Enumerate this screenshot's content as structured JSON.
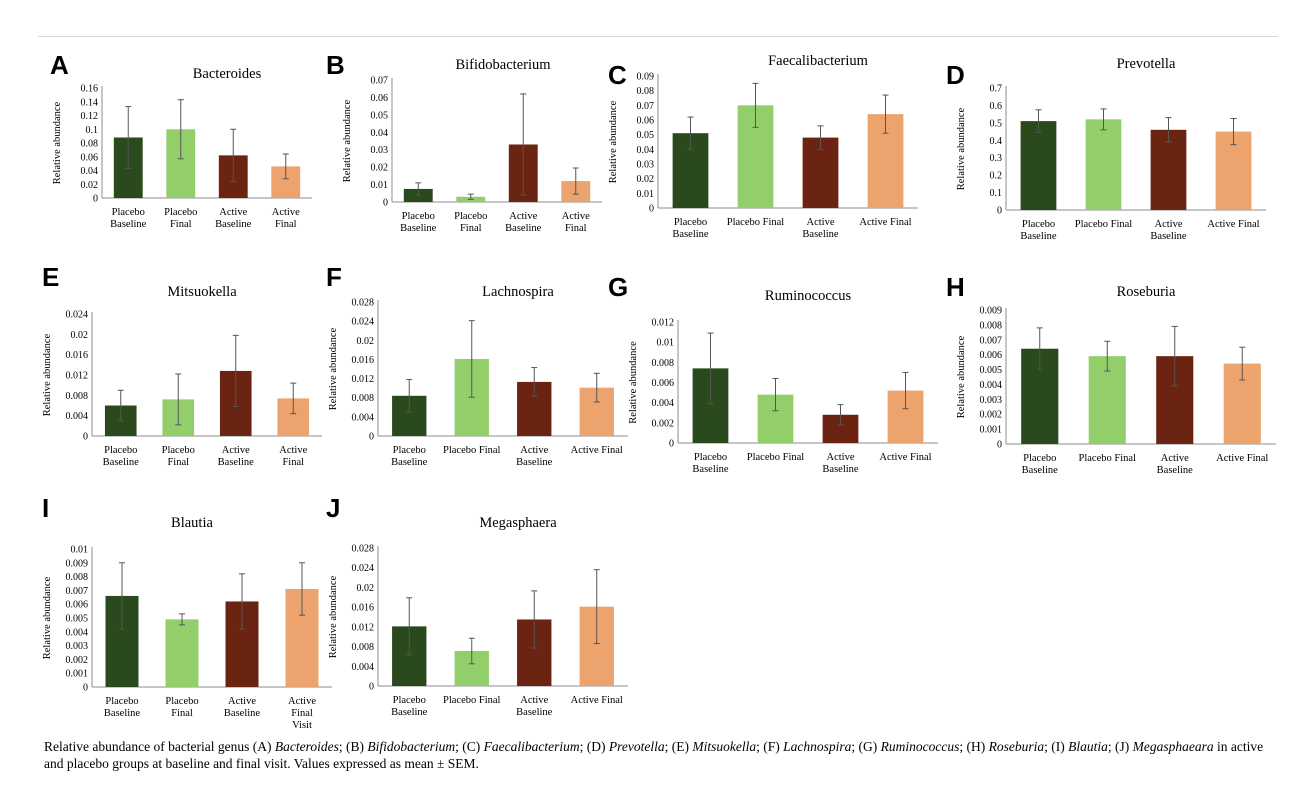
{
  "ylabel": "Relative abundance",
  "colors": {
    "placebo_baseline": "#2a4a1e",
    "placebo_final": "#92cf6b",
    "active_baseline": "#6b2412",
    "active_final": "#eda36d",
    "axis": "#8c8c8c",
    "error_bar": "#555555"
  },
  "caption": {
    "prefix": "Relative abundance of bacterial genus (A) ",
    "parts": [
      {
        "italic": "Bacteroides",
        "after": "; (B) "
      },
      {
        "italic": "Bifidobacterium",
        "after": "; (C) "
      },
      {
        "italic": "Faecalibacterium",
        "after": "; (D) "
      },
      {
        "italic": "Prevotella",
        "after": "; (E) "
      },
      {
        "italic": "Mitsuokella",
        "after": "; (F) "
      },
      {
        "italic": "Lachnospira",
        "after": "; (G) "
      },
      {
        "italic": "Ruminococcus",
        "after": "; (H) "
      },
      {
        "italic": "Roseburia",
        "after": "; (I) "
      },
      {
        "italic": "Blautia",
        "after": "; (J) "
      },
      {
        "italic": "Megasphaeara",
        "after": " in active and placebo groups at baseline and final visit. Values expressed as mean ± SEM."
      }
    ]
  },
  "chart_data": [
    {
      "type": "bar",
      "panel": "A",
      "title": "Bacteroides",
      "ylabel": "Relative abundance",
      "categories": [
        "Placebo Baseline",
        "Placebo Final",
        "Active Baseline",
        "Active Final"
      ],
      "values": [
        0.088,
        0.1,
        0.062,
        0.046
      ],
      "errors": [
        0.045,
        0.043,
        0.038,
        0.018
      ],
      "ylim": [
        0,
        0.16
      ],
      "yticks": [
        "0",
        "0.02",
        "0.04",
        "0.06",
        "0.08",
        "0.1",
        "0.12",
        "0.14",
        "0.16"
      ]
    },
    {
      "type": "bar",
      "panel": "B",
      "title": "Bifidobacterium",
      "ylabel": "Relative abundance",
      "categories": [
        "Placebo Baseline",
        "Placebo Final",
        "Active Baseline",
        "Active Final"
      ],
      "values": [
        0.0075,
        0.003,
        0.033,
        0.012
      ],
      "errors": [
        0.0035,
        0.0015,
        0.029,
        0.0075
      ],
      "ylim": [
        0,
        0.07
      ],
      "yticks": [
        "0",
        "0.01",
        "0.02",
        "0.03",
        "0.04",
        "0.05",
        "0.06",
        "0.07"
      ]
    },
    {
      "type": "bar",
      "panel": "C",
      "title": "Faecalibacterium",
      "ylabel": "Relative abundance",
      "categories": [
        "Placebo Baseline",
        "Placebo Final",
        "Active Baseline",
        "Active Final"
      ],
      "values": [
        0.051,
        0.07,
        0.048,
        0.064
      ],
      "errors": [
        0.011,
        0.015,
        0.008,
        0.013
      ],
      "ylim": [
        0,
        0.09
      ],
      "yticks": [
        "0",
        "0.01",
        "0.02",
        "0.03",
        "0.04",
        "0.05",
        "0.06",
        "0.07",
        "0.08",
        "0.09"
      ]
    },
    {
      "type": "bar",
      "panel": "D",
      "title": "Prevotella",
      "ylabel": "Relative abundance",
      "categories": [
        "Placebo Baseline",
        "Placebo Final",
        "Active Baseline",
        "Active Final"
      ],
      "values": [
        0.51,
        0.52,
        0.46,
        0.45
      ],
      "errors": [
        0.065,
        0.06,
        0.07,
        0.075
      ],
      "ylim": [
        0,
        0.7
      ],
      "yticks": [
        "0",
        "0.1",
        "0.2",
        "0.3",
        "0.4",
        "0.5",
        "0.6",
        "0.7"
      ]
    },
    {
      "type": "bar",
      "panel": "E",
      "title": "Mitsuokella",
      "ylabel": "Relative abundance",
      "categories": [
        "Placebo Baseline",
        "Placebo Final",
        "Active Baseline",
        "Active Final"
      ],
      "values": [
        0.006,
        0.0072,
        0.0128,
        0.0074
      ],
      "errors": [
        0.003,
        0.005,
        0.007,
        0.003
      ],
      "ylim": [
        0,
        0.024
      ],
      "yticks": [
        "0",
        "0.004",
        "0.008",
        "0.012",
        "0.016",
        "0.02",
        "0.024"
      ]
    },
    {
      "type": "bar",
      "panel": "F",
      "title": "Lachnospira",
      "ylabel": "Relative abundance",
      "categories": [
        "Placebo Baseline",
        "Placebo Final",
        "Active Baseline",
        "Active Final"
      ],
      "values": [
        0.0084,
        0.0161,
        0.0113,
        0.0101
      ],
      "errors": [
        0.0034,
        0.008,
        0.003,
        0.003
      ],
      "ylim": [
        0,
        0.028
      ],
      "yticks": [
        "0",
        "0.004",
        "0.008",
        "0.012",
        "0.016",
        "0.02",
        "0.024",
        "0.028"
      ]
    },
    {
      "type": "bar",
      "panel": "G",
      "title": "Ruminococcus",
      "ylabel": "Relative abundance",
      "categories": [
        "Placebo Baseline",
        "Placebo Final",
        "Active Baseline",
        "Active Final"
      ],
      "values": [
        0.0074,
        0.0048,
        0.0028,
        0.0052
      ],
      "errors": [
        0.0035,
        0.0016,
        0.001,
        0.0018
      ],
      "ylim": [
        0,
        0.012
      ],
      "yticks": [
        "0",
        "0.002",
        "0.004",
        "0.006",
        "0.008",
        "0.01",
        "0.012"
      ]
    },
    {
      "type": "bar",
      "panel": "H",
      "title": "Roseburia",
      "ylabel": "Relative abundance",
      "categories": [
        "Placebo Baseline",
        "Placebo Final",
        "Active Baseline",
        "Active Final"
      ],
      "values": [
        0.0064,
        0.0059,
        0.0059,
        0.0054
      ],
      "errors": [
        0.0014,
        0.001,
        0.002,
        0.0011
      ],
      "ylim": [
        0,
        0.009
      ],
      "yticks": [
        "0",
        "0.001",
        "0.002",
        "0.003",
        "0.004",
        "0.005",
        "0.006",
        "0.007",
        "0.008",
        "0.009"
      ]
    },
    {
      "type": "bar",
      "panel": "I",
      "title": "Blautia",
      "ylabel": "Relative abundance",
      "categories": [
        "Placebo Baseline",
        "Placebo Final",
        "Active Baseline",
        "Active Final Visit"
      ],
      "values": [
        0.0066,
        0.0049,
        0.0062,
        0.0071
      ],
      "errors": [
        0.0024,
        0.0004,
        0.002,
        0.0019
      ],
      "ylim": [
        0,
        0.01
      ],
      "yticks": [
        "0",
        "0.001",
        "0.002",
        "0.003",
        "0.004",
        "0.005",
        "0.006",
        "0.007",
        "0.008",
        "0.009",
        "0.01"
      ]
    },
    {
      "type": "bar",
      "panel": "J",
      "title": "Megasphaera",
      "ylabel": "Relative abundance",
      "categories": [
        "Placebo Baseline",
        "Placebo Final",
        "Active Baseline",
        "Active Final"
      ],
      "values": [
        0.0121,
        0.0071,
        0.0135,
        0.0161
      ],
      "errors": [
        0.0058,
        0.0026,
        0.0058,
        0.0075
      ],
      "ylim": [
        0,
        0.028
      ],
      "yticks": [
        "0",
        "0.004",
        "0.008",
        "0.012",
        "0.016",
        "0.02",
        "0.024",
        "0.028"
      ]
    }
  ]
}
